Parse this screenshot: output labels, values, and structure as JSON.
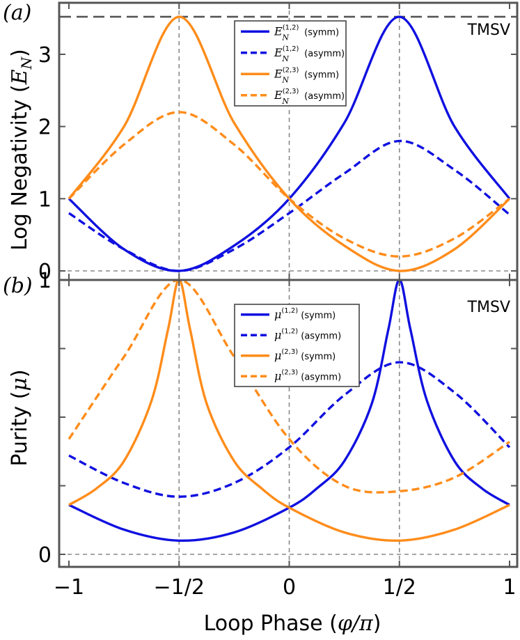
{
  "chart_data": [
    {
      "panel_label": "(a)",
      "type": "line",
      "ylabel": "Log Negativity (E_N)",
      "ylabel_parts": {
        "main": "Log Negativity (",
        "symbol": "E",
        "sub": "N",
        "end": ")"
      },
      "annotation": "TMSV",
      "xlim": [
        -1,
        1
      ],
      "ylim": [
        -0.12,
        3.62
      ],
      "yticks": [
        0,
        1,
        2,
        3
      ],
      "ytick_labels": [
        "0",
        "1",
        "2",
        "3"
      ],
      "xticks": [
        -1,
        -0.5,
        0,
        0.5,
        1
      ],
      "hlines": [
        {
          "y": 0,
          "style": "dashed-thin"
        },
        {
          "y": 3.52,
          "style": "dashed-thick"
        }
      ],
      "vlines": [
        -0.5,
        0,
        0.5
      ],
      "legend_position": "upper right",
      "series": [
        {
          "name": "E_N^(1,2) (symm)",
          "label_main": "E",
          "label_sub": "N",
          "label_sup": "(1,2)",
          "label_tail": "(symm)",
          "color": "#1010e0",
          "dash": "solid",
          "x": [
            -1,
            -0.75,
            -0.5,
            -0.25,
            0,
            0.25,
            0.5,
            0.75,
            1
          ],
          "y": [
            1.0,
            0.3,
            0.0,
            0.35,
            1.0,
            2.05,
            3.52,
            2.0,
            1.0
          ]
        },
        {
          "name": "E_N^(1,2) (asymm)",
          "label_main": "E",
          "label_sub": "N",
          "label_sup": "(1,2)",
          "label_tail": "(asymm)",
          "color": "#1010e0",
          "dash": "dashed",
          "x": [
            -1,
            -0.75,
            -0.5,
            -0.25,
            0,
            0.25,
            0.5,
            0.75,
            1
          ],
          "y": [
            0.8,
            0.3,
            0.0,
            0.3,
            0.8,
            1.35,
            1.8,
            1.4,
            0.78
          ]
        },
        {
          "name": "E_N^(2,3) (symm)",
          "label_main": "E",
          "label_sub": "N",
          "label_sup": "(2,3)",
          "label_tail": "(symm)",
          "color": "#ff8c1a",
          "dash": "solid",
          "x": [
            -1,
            -0.75,
            -0.5,
            -0.25,
            0,
            0.25,
            0.5,
            0.75,
            1
          ],
          "y": [
            1.0,
            2.0,
            3.52,
            2.05,
            1.0,
            0.35,
            0.0,
            0.3,
            1.0
          ]
        },
        {
          "name": "E_N^(2,3) (asymm)",
          "label_main": "E",
          "label_sub": "N",
          "label_sup": "(2,3)",
          "label_tail": "(asymm)",
          "color": "#ff8c1a",
          "dash": "dashed",
          "x": [
            -1,
            -0.75,
            -0.5,
            -0.25,
            0,
            0.25,
            0.5,
            0.75,
            1
          ],
          "y": [
            1.0,
            1.75,
            2.2,
            1.75,
            1.0,
            0.45,
            0.2,
            0.45,
            1.0
          ]
        }
      ]
    },
    {
      "panel_label": "(b)",
      "type": "line",
      "ylabel": "Purity (μ)",
      "ylabel_parts": {
        "main": "Purity (",
        "symbol": "μ",
        "sub": "",
        "end": ")"
      },
      "xlabel": "Loop Phase (φ/π)",
      "xlabel_parts": {
        "main": "Loop Phase (",
        "symbol": "φ/π",
        "end": ")"
      },
      "annotation": "TMSV",
      "xlim": [
        -1,
        1
      ],
      "ylim": [
        -0.03,
        1.03
      ],
      "yticks": [
        0,
        0.25,
        0.5,
        0.75,
        1
      ],
      "ytick_labels": [
        "0",
        "",
        "",
        "",
        "1"
      ],
      "xticks": [
        -1,
        -0.5,
        0,
        0.5,
        1
      ],
      "xtick_labels": [
        "−1",
        "−1/2",
        "0",
        "1/2",
        "1"
      ],
      "hlines": [
        {
          "y": 0,
          "style": "dashed-thin"
        },
        {
          "y": 1,
          "style": "dashed-thick"
        }
      ],
      "vlines": [
        -0.5,
        0,
        0.5
      ],
      "legend_position": "upper right",
      "series": [
        {
          "name": "μ^(1,2) (symm)",
          "label_main": "μ",
          "label_sub": "",
          "label_sup": "(1,2)",
          "label_tail": "(symm)",
          "color": "#1010e0",
          "dash": "solid",
          "x": [
            -1,
            -0.75,
            -0.5,
            -0.25,
            0,
            0.125,
            0.25,
            0.375,
            0.45,
            0.5,
            0.55,
            0.625,
            0.75,
            0.875,
            1
          ],
          "y": [
            0.18,
            0.09,
            0.05,
            0.08,
            0.17,
            0.24,
            0.34,
            0.55,
            0.82,
            1.0,
            0.82,
            0.56,
            0.34,
            0.24,
            0.18
          ]
        },
        {
          "name": "μ^(1,2) (asymm)",
          "label_main": "μ",
          "label_sub": "",
          "label_sup": "(1,2)",
          "label_tail": "(asymm)",
          "color": "#1010e0",
          "dash": "dashed",
          "x": [
            -1,
            -0.75,
            -0.5,
            -0.25,
            0,
            0.25,
            0.5,
            0.75,
            1
          ],
          "y": [
            0.36,
            0.26,
            0.21,
            0.26,
            0.39,
            0.58,
            0.7,
            0.59,
            0.39
          ]
        },
        {
          "name": "μ^(2,3) (symm)",
          "label_main": "μ",
          "label_sub": "",
          "label_sup": "(2,3)",
          "label_tail": "(symm)",
          "color": "#ff8c1a",
          "dash": "solid",
          "x": [
            -1,
            -0.875,
            -0.75,
            -0.625,
            -0.55,
            -0.5,
            -0.45,
            -0.375,
            -0.25,
            -0.125,
            0,
            0.25,
            0.5,
            0.75,
            1
          ],
          "y": [
            0.18,
            0.24,
            0.34,
            0.56,
            0.82,
            1.0,
            0.82,
            0.55,
            0.34,
            0.24,
            0.17,
            0.08,
            0.05,
            0.09,
            0.18
          ]
        },
        {
          "name": "μ^(2,3) (asymm)",
          "label_main": "μ",
          "label_sub": "",
          "label_sup": "(2,3)",
          "label_tail": "(asymm)",
          "color": "#ff8c1a",
          "dash": "dashed",
          "x": [
            -1,
            -0.75,
            -0.5,
            -0.25,
            0,
            0.25,
            0.5,
            0.75,
            1
          ],
          "y": [
            0.42,
            0.72,
            1.0,
            0.72,
            0.42,
            0.25,
            0.23,
            0.28,
            0.41
          ]
        }
      ]
    }
  ]
}
